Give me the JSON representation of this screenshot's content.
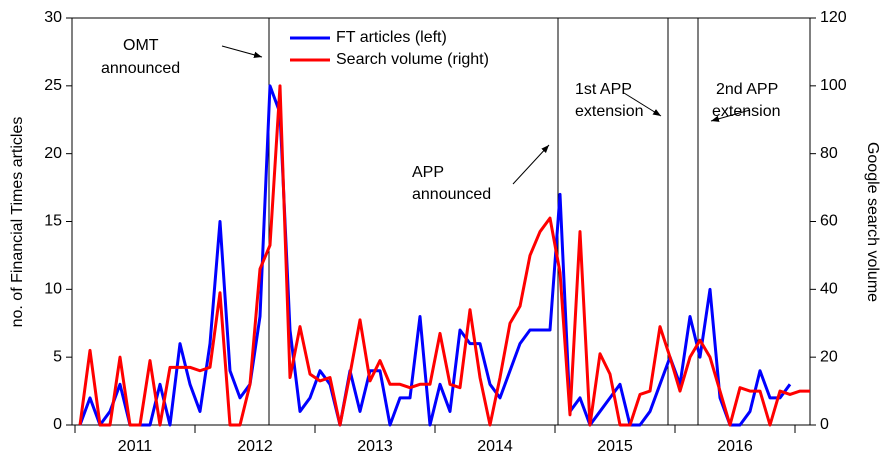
{
  "chart_data": {
    "type": "line",
    "categories": [
      null,
      null,
      null,
      null,
      null,
      null,
      "2011",
      null,
      null,
      null,
      null,
      null,
      null,
      null,
      null,
      null,
      null,
      null,
      "2012",
      null,
      null,
      null,
      null,
      null,
      null,
      null,
      null,
      null,
      null,
      null,
      "2013",
      null,
      null,
      null,
      null,
      null,
      null,
      null,
      null,
      null,
      null,
      null,
      "2014",
      null,
      null,
      null,
      null,
      null,
      null,
      null,
      null,
      null,
      null,
      null,
      "2015",
      null,
      null,
      null,
      null,
      null,
      null,
      null,
      null,
      null,
      null,
      null,
      "2016",
      null,
      null,
      null,
      null,
      null,
      null,
      null
    ],
    "series": [
      {
        "name": "FT articles (left)",
        "color": "#0000ff",
        "values": [
          0,
          2,
          0,
          1,
          3,
          0,
          0,
          0,
          3,
          0,
          6,
          3,
          1,
          6,
          15,
          4,
          2,
          3,
          8,
          25,
          23,
          7,
          1,
          2,
          4,
          3,
          0,
          4,
          1,
          4,
          4,
          0,
          2,
          2,
          8,
          0,
          3,
          1,
          7,
          6,
          6,
          3,
          2,
          4,
          6,
          7,
          7,
          7,
          17,
          1,
          2,
          0,
          1,
          2,
          3,
          0,
          0,
          1,
          3,
          5,
          3,
          8,
          5,
          10,
          2,
          0,
          0,
          1,
          4,
          2,
          2,
          3,
          null,
          null
        ]
      },
      {
        "name": "Search volume (right)",
        "color": "#ff0000",
        "axis": "y2",
        "values": [
          0,
          22,
          0,
          0,
          20,
          0,
          0,
          19,
          0,
          17,
          17,
          17,
          16,
          17,
          39,
          0,
          0,
          12,
          46,
          53,
          100,
          14,
          29,
          15,
          13,
          14,
          0,
          15,
          31,
          13,
          19,
          12,
          12,
          11,
          12,
          12,
          27,
          12,
          11,
          34,
          14,
          0,
          14,
          30,
          35,
          50,
          57,
          61,
          45,
          3,
          57,
          0,
          21,
          15,
          0,
          0,
          9,
          10,
          29,
          20,
          10,
          20,
          25,
          20,
          10,
          0,
          11,
          10,
          10,
          0,
          10,
          9,
          10,
          10
        ]
      }
    ],
    "ylabel": "no. of Financial Times articles",
    "y2label": "Google search volume",
    "ylim": [
      0,
      30
    ],
    "yticks": [
      0,
      5,
      10,
      15,
      20,
      25,
      30
    ],
    "y2lim": [
      0,
      120
    ],
    "y2ticks": [
      0,
      20,
      40,
      60,
      80,
      100,
      120
    ],
    "annotations": [
      [
        "OMT",
        "announced"
      ],
      [
        "APP",
        "announced"
      ],
      [
        "1st APP",
        "extension"
      ],
      [
        "2nd APP",
        "extension"
      ]
    ]
  }
}
